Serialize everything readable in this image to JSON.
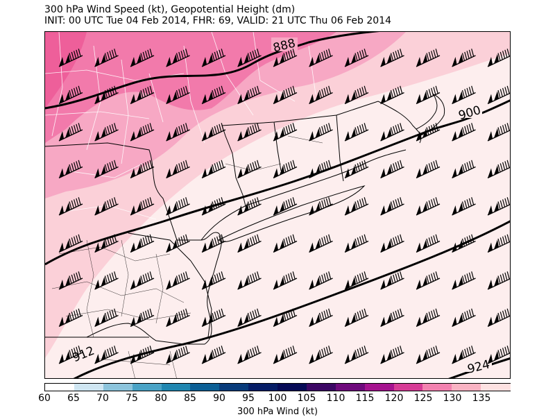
{
  "title": {
    "line1": "300 hPa Wind Speed (kt), Geopotential Height (dm)",
    "line2": "INIT: 00 UTC Tue 04 Feb 2014, FHR: 69, VALID: 21 UTC Thu 06 Feb 2014"
  },
  "contours": [
    {
      "label": "888",
      "level": 888
    },
    {
      "label": "900",
      "level": 900
    },
    {
      "label": "912",
      "level": 912
    },
    {
      "label": "924",
      "level": 924
    }
  ],
  "colorbar": {
    "label": "300 hPa Wind (kt)",
    "ticks": [
      "60",
      "65",
      "70",
      "75",
      "80",
      "85",
      "90",
      "95",
      "100",
      "105",
      "110",
      "115",
      "120",
      "125",
      "130",
      "135"
    ],
    "colors": [
      "#ffffff",
      "#cfe6f2",
      "#8cc4dc",
      "#4aa3c6",
      "#1f86b0",
      "#0b5f95",
      "#083b7a",
      "#061d66",
      "#060a55",
      "#3b0764",
      "#6e0a7c",
      "#a5138f",
      "#d63c96",
      "#f282b0",
      "#f9b3c3",
      "#fde2e2"
    ]
  },
  "colors": {
    "pink_strong": "#f27aab",
    "pink_mid": "#f7a8c4",
    "pink_light": "#fbd0d8",
    "pink_background": "#fdeeee",
    "county_lines": "#ffffff",
    "state_lines": "#000000"
  },
  "barb_icon": "wind-barb-icon"
}
